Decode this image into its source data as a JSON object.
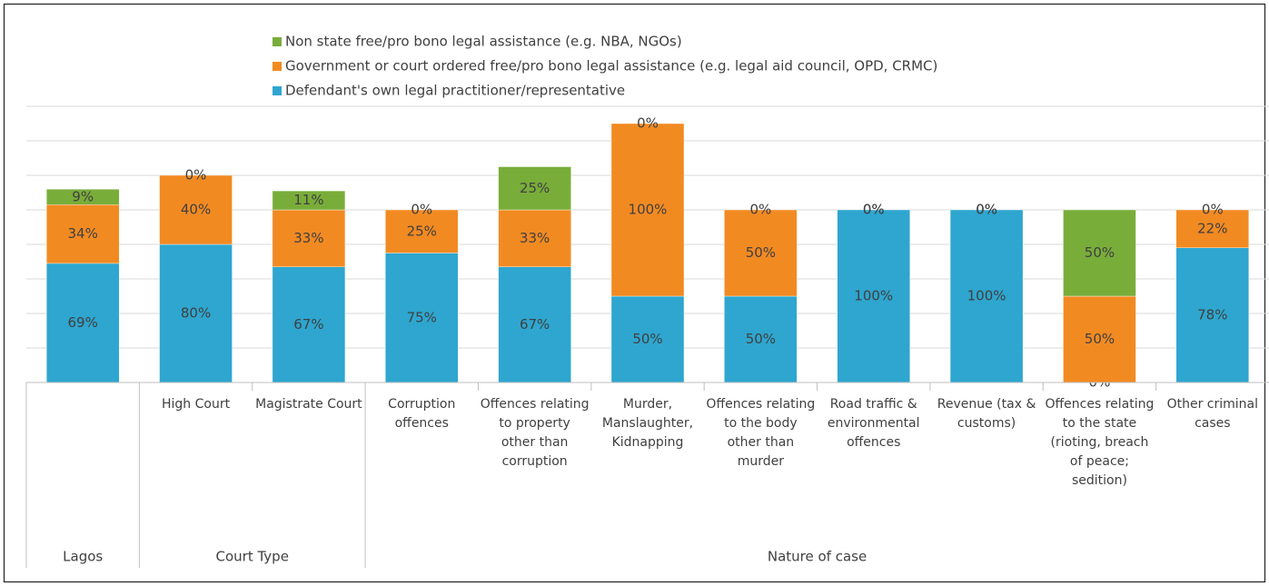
{
  "chart_data": {
    "type": "stacked_bar",
    "categories": [
      null,
      "High Court",
      "Magistrate Court",
      "Corruption offences",
      "Offences relating to property other than corruption",
      "Murder, Manslaughter, Kidnapping",
      "Offences relating to the body other than murder",
      "Road traffic & environmental offences",
      "Revenue (tax & customs)",
      "Offences relating to the state (rioting, breach of peace; sedition)",
      "Other criminal cases"
    ],
    "groups": [
      {
        "name": "Lagos",
        "count": 1
      },
      {
        "name": "Court Type",
        "count": 2
      },
      {
        "name": "Nature of case",
        "count": 8
      }
    ],
    "series": [
      {
        "name": "Defendant's own legal practitioner/representative",
        "color": "#2ea6cf",
        "values": [
          69,
          80,
          67,
          75,
          67,
          50,
          50,
          100,
          100,
          0,
          78
        ],
        "value_labels": [
          "69%",
          "80%",
          "67%",
          "75%",
          "67%",
          "50%",
          "50%",
          "100%",
          "100%",
          "0%",
          "78%"
        ]
      },
      {
        "name": "Government or court ordered free/pro bono legal assistance (e.g. legal aid council, OPD, CRMC)",
        "color": "#f28a22",
        "values": [
          34,
          40,
          33,
          25,
          33,
          100,
          50,
          0,
          0,
          50,
          22
        ],
        "value_labels": [
          "34%",
          "40%",
          "33%",
          "25%",
          "33%",
          "100%",
          "50%",
          "0%",
          "0%",
          "50%",
          "22%"
        ]
      },
      {
        "name": "Non state free/pro bono legal assistance (e.g. NBA, NGOs)",
        "color": "#79ad3a",
        "values": [
          9,
          0,
          11,
          0,
          25,
          0,
          0,
          0,
          0,
          50,
          0
        ],
        "value_labels": [
          "9%",
          "0%",
          "11%",
          "0%",
          "25%",
          "0%",
          "0%",
          "0%",
          "0%",
          "50%",
          "0%"
        ]
      }
    ],
    "ylim": [
      0,
      160
    ],
    "yticks": [
      0,
      20,
      40,
      60,
      80,
      100,
      120,
      140,
      160
    ],
    "grid": true,
    "legend": "top-left"
  }
}
